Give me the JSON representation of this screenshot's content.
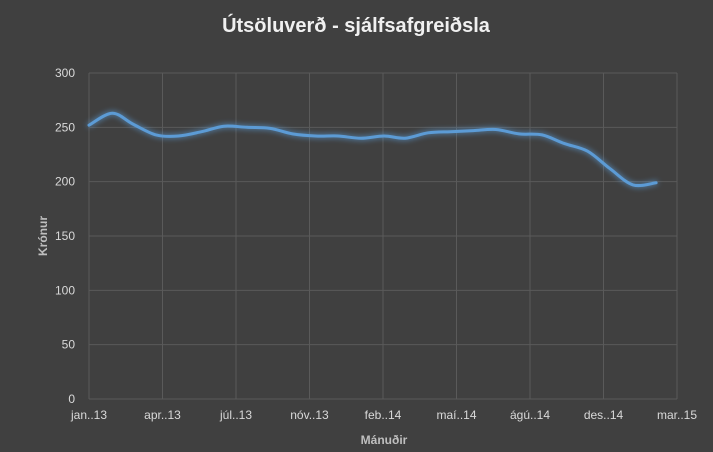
{
  "chart_data": {
    "type": "line",
    "title": "Útsöluverð - sjálfsafgreiðsla",
    "xlabel": "Mánuðir",
    "ylabel": "Krónur",
    "ylim": [
      0,
      300
    ],
    "yticks": [
      0,
      50,
      100,
      150,
      200,
      250,
      300
    ],
    "xticks": [
      "jan..13",
      "apr..13",
      "júl..13",
      "nóv..13",
      "feb..14",
      "maí..14",
      "ágú..14",
      "des..14",
      "mar..15"
    ],
    "xlim": [
      "2013-01-01",
      "2015-03-01"
    ],
    "grid": true,
    "legend": "none",
    "line_color": "#5b9bd5",
    "series": [
      {
        "x": [
          "2013-01-01",
          "2013-02-01",
          "2013-03-01",
          "2013-04-01",
          "2013-05-01",
          "2013-06-01",
          "2013-07-01",
          "2013-08-01",
          "2013-09-01",
          "2013-10-01",
          "2013-11-01",
          "2013-12-01",
          "2014-01-01",
          "2014-02-01",
          "2014-03-01",
          "2014-04-01",
          "2014-05-01",
          "2014-06-01",
          "2014-07-01",
          "2014-08-01",
          "2014-09-01",
          "2014-10-01",
          "2014-11-01",
          "2014-12-01",
          "2015-01-01",
          "2015-02-01"
        ],
        "values": [
          252,
          263,
          253,
          243,
          242,
          246,
          251,
          250,
          249,
          244,
          242,
          242,
          240,
          242,
          240,
          245,
          246,
          247,
          248,
          244,
          243,
          235,
          228,
          212,
          197,
          199
        ]
      }
    ]
  }
}
